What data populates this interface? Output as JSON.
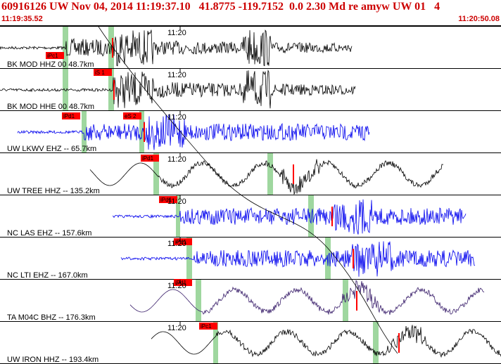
{
  "header": {
    "title": "60916126 UW Nov 04, 2014 11:19:37.10   41.8775 -119.7152  0.0 2.30 Md re amyw UW 01   4",
    "time_start": "11:19:35.52",
    "time_end": "11:20:50.08"
  },
  "minute_label": "11:20",
  "colors": {
    "accent": "#cc0000",
    "pick": "#ff0000",
    "window": "#9fd79f",
    "black": "#000000",
    "blue": "#0000ee",
    "purple": "#3a1f6b"
  },
  "traces": [
    {
      "label": "BK MOD HHZ 00 48.7km",
      "color": "#000000",
      "picks": [
        "iPc1"
      ],
      "amp": "small"
    },
    {
      "label": "BK MOD HHE 00 48.7km",
      "color": "#000000",
      "picks": [
        "iS 1"
      ],
      "amp": "small"
    },
    {
      "label": "UW LKWV EHZ -- 65.7km",
      "color": "#0000ee",
      "picks": [
        "iPd1",
        "eS 2"
      ],
      "amp": "medium"
    },
    {
      "label": "UW TREE HHZ -- 135.2km",
      "color": "#000000",
      "picks": [
        "iPd1"
      ],
      "amp": "wave"
    },
    {
      "label": "NC LAS EHZ -- 157.6km",
      "color": "#0000ee",
      "picks": [
        "iPd1"
      ],
      "amp": "medium"
    },
    {
      "label": "NC LTI EHZ -- 167.0km",
      "color": "#0000ee",
      "picks": [
        "iPd1"
      ],
      "amp": "medium"
    },
    {
      "label": "TA M04C BHZ -- 176.3km",
      "color": "#3a1f6b",
      "picks": [
        "iPd1"
      ],
      "amp": "wave"
    },
    {
      "label": "UW IRON HHZ -- 193.4km",
      "color": "#000000",
      "picks": [
        "iPc1"
      ],
      "amp": "wave"
    }
  ]
}
